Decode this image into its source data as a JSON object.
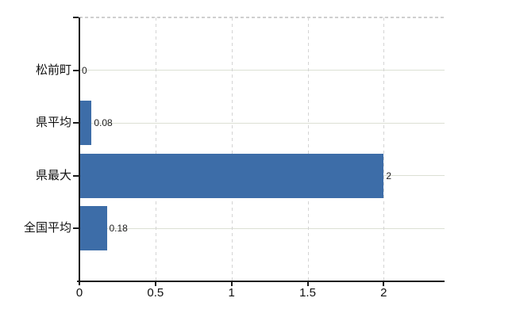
{
  "chart_data": {
    "type": "bar",
    "orientation": "horizontal",
    "title": "",
    "categories": [
      "松前町",
      "県平均",
      "県最大",
      "全国平均"
    ],
    "values": [
      0,
      0.08,
      2,
      0.18
    ],
    "data_labels": [
      "0",
      "0.08",
      "2",
      "0.18"
    ],
    "x_ticks": [
      0,
      0.5,
      1,
      1.5,
      2
    ],
    "x_tick_labels": [
      "0",
      "0.5",
      "1",
      "1.5",
      "2"
    ],
    "xlim": [
      0,
      2.4
    ],
    "grid": true,
    "legend": false,
    "colors": {
      "bar": "#3d6da8",
      "h_gridline": "#dce0d4",
      "v_gridline": "#d4d4d4",
      "top_border_dashed": "#cfcfcf",
      "axis": "#1a1a1a",
      "tick_text": "#111111",
      "data_label_text": "#222222",
      "background": "#ffffff"
    }
  }
}
